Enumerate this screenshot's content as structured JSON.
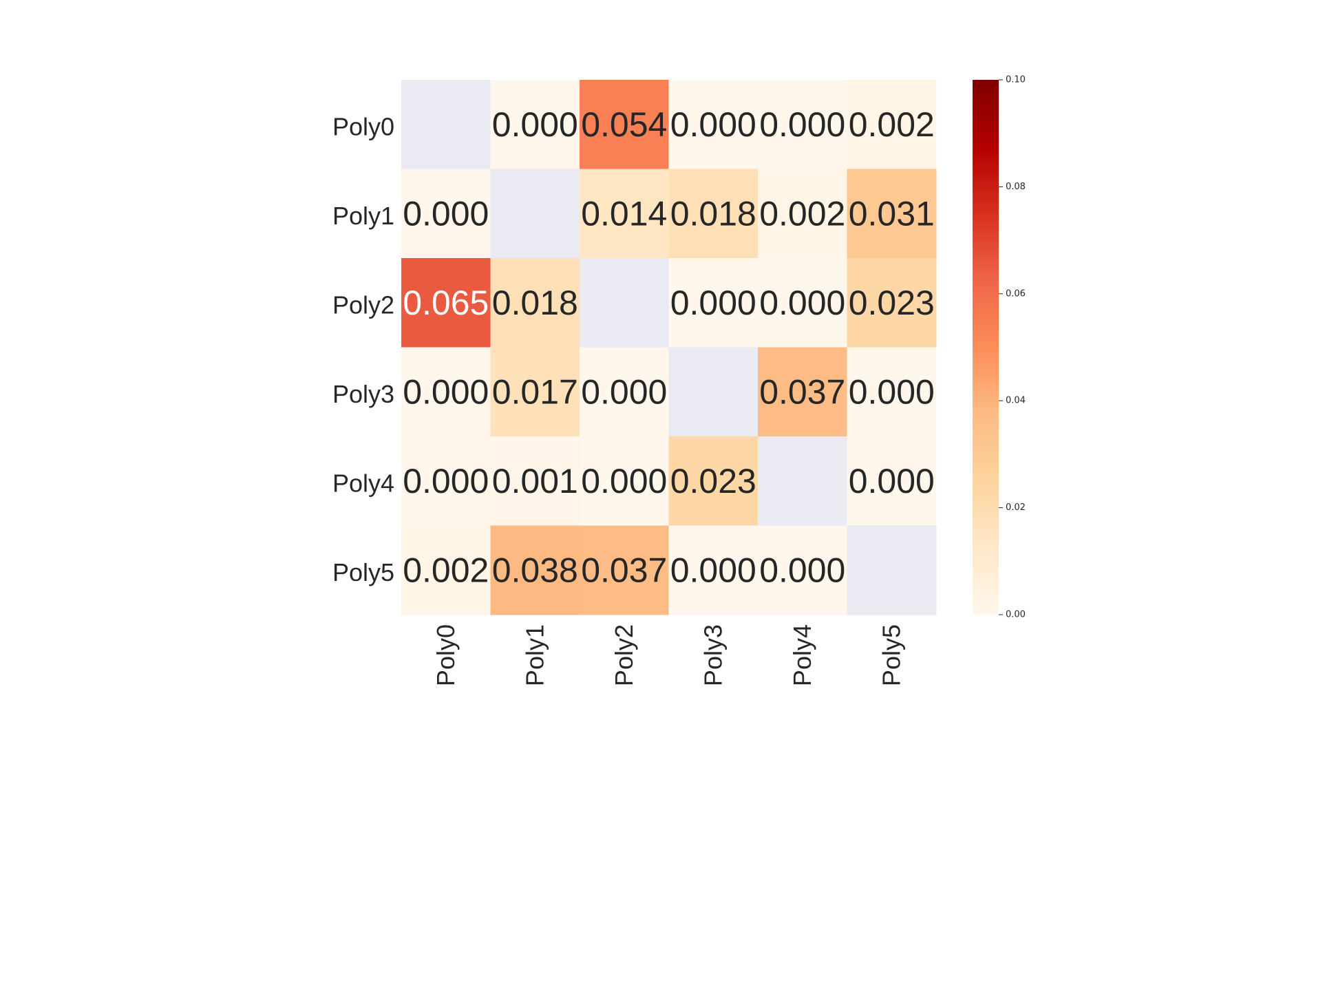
{
  "chart_data": {
    "type": "heatmap",
    "title": "",
    "xlabel": "",
    "ylabel": "",
    "x_categories": [
      "Poly0",
      "Poly1",
      "Poly2",
      "Poly3",
      "Poly4",
      "Poly5"
    ],
    "y_categories": [
      "Poly0",
      "Poly1",
      "Poly2",
      "Poly3",
      "Poly4",
      "Poly5"
    ],
    "values": [
      [
        null,
        0.0,
        0.054,
        0.0,
        0.0,
        0.002
      ],
      [
        0.0,
        null,
        0.014,
        0.018,
        0.002,
        0.031
      ],
      [
        0.065,
        0.018,
        null,
        0.0,
        0.0,
        0.023
      ],
      [
        0.0,
        0.017,
        0.0,
        null,
        0.037,
        0.0
      ],
      [
        0.0,
        0.001,
        0.0,
        0.023,
        null,
        0.0
      ],
      [
        0.002,
        0.038,
        0.037,
        0.0,
        0.0,
        null
      ]
    ],
    "value_format": "0.000",
    "missing_cells": "diagonal",
    "colormap": "OrRd",
    "missing_color": "#eaeaf2",
    "vmin": 0.0,
    "vmax": 0.1,
    "colorbar": {
      "ticks": [
        0.0,
        0.02,
        0.04,
        0.06,
        0.08,
        0.1
      ],
      "tick_labels": [
        "0.00",
        "0.02",
        "0.04",
        "0.06",
        "0.08",
        "0.10"
      ]
    }
  }
}
